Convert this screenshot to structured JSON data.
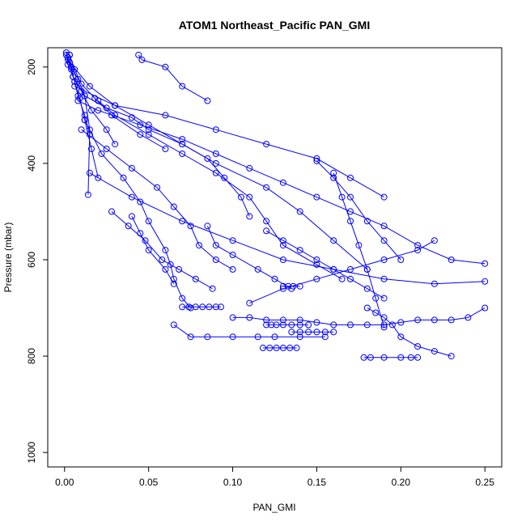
{
  "chart_data": {
    "type": "line",
    "title": "ATOM1 Northeast_Pacific PAN_GMI",
    "xlabel": "PAN_GMI",
    "ylabel": "Pressure (mbar)",
    "xlim": [
      -0.01,
      0.26
    ],
    "ylim": [
      1030,
      160
    ],
    "y_reversed": true,
    "grid": false,
    "marker": "open-circle",
    "color": "#0000ff",
    "x_ticks": [
      "0.00",
      "0.05",
      "0.10",
      "0.15",
      "0.20",
      "0.25"
    ],
    "y_ticks": [
      "200",
      "400",
      "600",
      "800",
      "1000"
    ],
    "series": [
      {
        "x": [
          0.001,
          0.002,
          0.004,
          0.006,
          0.008,
          0.012,
          0.015
        ],
        "y": [
          175,
          185,
          205,
          230,
          260,
          300,
          340
        ]
      },
      {
        "x": [
          0.003,
          0.004,
          0.006,
          0.009,
          0.012,
          0.016,
          0.02
        ],
        "y": [
          175,
          200,
          230,
          265,
          310,
          370,
          430
        ]
      },
      {
        "x": [
          0.002,
          0.004,
          0.008,
          0.012,
          0.015,
          0.014
        ],
        "y": [
          180,
          200,
          225,
          260,
          330,
          465
        ]
      },
      {
        "x": [
          0.001,
          0.002,
          0.005,
          0.01,
          0.016,
          0.025,
          0.03
        ],
        "y": [
          170,
          195,
          220,
          250,
          290,
          330,
          360
        ]
      },
      {
        "x": [
          0.003,
          0.006,
          0.01,
          0.018,
          0.028,
          0.045,
          0.06
        ],
        "y": [
          175,
          205,
          235,
          265,
          300,
          340,
          370
        ]
      },
      {
        "x": [
          0.044,
          0.046,
          0.06,
          0.07,
          0.085
        ],
        "y": [
          175,
          185,
          200,
          240,
          270
        ]
      },
      {
        "x": [
          0.005,
          0.012,
          0.025,
          0.04,
          0.05,
          0.07,
          0.085,
          0.095,
          0.105,
          0.11
        ],
        "y": [
          220,
          260,
          285,
          305,
          330,
          360,
          390,
          430,
          470,
          510
        ]
      },
      {
        "x": [
          0.008,
          0.02,
          0.045,
          0.07,
          0.09,
          0.11,
          0.13,
          0.15,
          0.17,
          0.19,
          0.21,
          0.23,
          0.25
        ],
        "y": [
          270,
          290,
          320,
          350,
          380,
          410,
          440,
          470,
          500,
          530,
          570,
          600,
          608
        ]
      },
      {
        "x": [
          0.003,
          0.015,
          0.03,
          0.05,
          0.07,
          0.09,
          0.12,
          0.14,
          0.16,
          0.18
        ],
        "y": [
          190,
          240,
          280,
          320,
          360,
          400,
          450,
          500,
          560,
          620
        ]
      },
      {
        "x": [
          0.01,
          0.025,
          0.04,
          0.055,
          0.065,
          0.075,
          0.08,
          0.09,
          0.1
        ],
        "y": [
          330,
          370,
          410,
          450,
          490,
          530,
          570,
          600,
          620
        ]
      },
      {
        "x": [
          0.006,
          0.03,
          0.06,
          0.09,
          0.12,
          0.15,
          0.17,
          0.19
        ],
        "y": [
          240,
          280,
          300,
          330,
          360,
          390,
          430,
          470
        ]
      },
      {
        "x": [
          0.012,
          0.022,
          0.035,
          0.045,
          0.05,
          0.06,
          0.063,
          0.065,
          0.07,
          0.075
        ],
        "y": [
          310,
          380,
          430,
          480,
          520,
          580,
          610,
          640,
          680,
          700
        ]
      },
      {
        "x": [
          0.02,
          0.03,
          0.05,
          0.07,
          0.09,
          0.11,
          0.12,
          0.13,
          0.15,
          0.165
        ],
        "y": [
          270,
          300,
          340,
          380,
          420,
          470,
          520,
          570,
          610,
          640
        ]
      },
      {
        "x": [
          0.015,
          0.04,
          0.07,
          0.1,
          0.13,
          0.16,
          0.19,
          0.22,
          0.25
        ],
        "y": [
          420,
          470,
          520,
          560,
          600,
          620,
          640,
          650,
          645
        ]
      },
      {
        "x": [
          0.028,
          0.038,
          0.048,
          0.058,
          0.068,
          0.078,
          0.088
        ],
        "y": [
          500,
          530,
          560,
          600,
          620,
          640,
          660
        ]
      },
      {
        "x": [
          0.04,
          0.045,
          0.05,
          0.06,
          0.065
        ],
        "y": [
          510,
          545,
          580,
          620,
          650
        ]
      },
      {
        "x": [
          0.085,
          0.09,
          0.1,
          0.115,
          0.125,
          0.135
        ],
        "y": [
          530,
          570,
          590,
          620,
          640,
          660
        ]
      },
      {
        "x": [
          0.07,
          0.074,
          0.078,
          0.082,
          0.086,
          0.09,
          0.093
        ],
        "y": [
          698,
          698,
          698,
          698,
          698,
          698,
          698
        ]
      },
      {
        "x": [
          0.065,
          0.075,
          0.085,
          0.1,
          0.115,
          0.125,
          0.14,
          0.155
        ],
        "y": [
          735,
          760,
          760,
          760,
          760,
          760,
          760,
          760
        ]
      },
      {
        "x": [
          0.1,
          0.11,
          0.12,
          0.13,
          0.14,
          0.15,
          0.16,
          0.17,
          0.18,
          0.19,
          0.2,
          0.21,
          0.22,
          0.23,
          0.24,
          0.25
        ],
        "y": [
          720,
          720,
          725,
          725,
          725,
          730,
          735,
          735,
          735,
          735,
          730,
          725,
          725,
          725,
          720,
          700
        ]
      },
      {
        "x": [
          0.12,
          0.123,
          0.126,
          0.13,
          0.135,
          0.14,
          0.145
        ],
        "y": [
          735,
          735,
          735,
          735,
          735,
          735,
          735
        ]
      },
      {
        "x": [
          0.135,
          0.14,
          0.145,
          0.15,
          0.155,
          0.16
        ],
        "y": [
          750,
          750,
          750,
          750,
          750,
          750
        ]
      },
      {
        "x": [
          0.118,
          0.122,
          0.126,
          0.13,
          0.134,
          0.138
        ],
        "y": [
          783,
          783,
          783,
          783,
          783,
          783
        ]
      },
      {
        "x": [
          0.178,
          0.182,
          0.19,
          0.2,
          0.206,
          0.21
        ],
        "y": [
          803,
          803,
          803,
          803,
          803,
          803
        ]
      },
      {
        "x": [
          0.13,
          0.133,
          0.136,
          0.14
        ],
        "y": [
          655,
          655,
          655,
          655
        ]
      },
      {
        "x": [
          0.11,
          0.13,
          0.15,
          0.17,
          0.19,
          0.21,
          0.22
        ],
        "y": [
          690,
          660,
          640,
          620,
          600,
          580,
          560
        ]
      },
      {
        "x": [
          0.18,
          0.185,
          0.19,
          0.195,
          0.2,
          0.21,
          0.22,
          0.23
        ],
        "y": [
          700,
          710,
          720,
          735,
          760,
          780,
          790,
          800
        ]
      },
      {
        "x": [
          0.12,
          0.13,
          0.14,
          0.15,
          0.16,
          0.17,
          0.18,
          0.19
        ],
        "y": [
          540,
          560,
          580,
          600,
          620,
          640,
          660,
          680
        ]
      },
      {
        "x": [
          0.16,
          0.165,
          0.17,
          0.175,
          0.18,
          0.185,
          0.19
        ],
        "y": [
          420,
          470,
          520,
          570,
          620,
          680,
          740
        ]
      },
      {
        "x": [
          0.15,
          0.16,
          0.17,
          0.18,
          0.19,
          0.2
        ],
        "y": [
          395,
          430,
          470,
          520,
          560,
          600
        ]
      }
    ]
  }
}
